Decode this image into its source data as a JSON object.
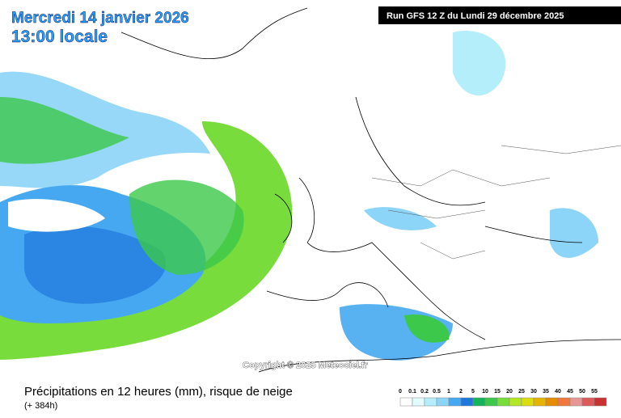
{
  "header": {
    "date": "Mercredi 14 janvier 2026",
    "time": "13:00 locale",
    "run": "Run GFS 12 Z du Lundi 29 décembre 2025"
  },
  "copyright": "Copyright © 2025 Meteociel.fr",
  "caption": {
    "title": "Précipitations en 12 heures (mm), risque de neige",
    "lead": "(+ 384h)"
  },
  "legend": {
    "items": [
      {
        "label": "0",
        "color": "#ffffff"
      },
      {
        "label": "0.1",
        "color": "#e1fbff"
      },
      {
        "label": "0.2",
        "color": "#b4eefa"
      },
      {
        "label": "0.5",
        "color": "#8cd4f8"
      },
      {
        "label": "1",
        "color": "#46a8f0"
      },
      {
        "label": "2",
        "color": "#1e78dc"
      },
      {
        "label": "5",
        "color": "#16b45a"
      },
      {
        "label": "10",
        "color": "#3cc84a"
      },
      {
        "label": "15",
        "color": "#78dc3c"
      },
      {
        "label": "20",
        "color": "#b4e628"
      },
      {
        "label": "25",
        "color": "#dcdc14"
      },
      {
        "label": "30",
        "color": "#e6b400"
      },
      {
        "label": "35",
        "color": "#e68c00"
      },
      {
        "label": "40",
        "color": "#f0783c"
      },
      {
        "label": "45",
        "color": "#e69696"
      },
      {
        "label": "50",
        "color": "#dc5a5a"
      },
      {
        "label": "55",
        "color": "#c83232"
      }
    ]
  }
}
